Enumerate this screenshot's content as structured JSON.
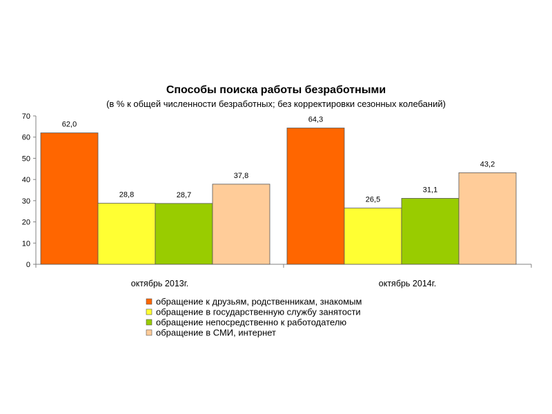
{
  "chart_data": {
    "type": "bar",
    "title": "Способы поиска работы безработными",
    "subtitle": "(в % к общей численности безработных; без корректировки сезонных колебаний)",
    "categories": [
      "октябрь 2013г.",
      "октябрь 2014г."
    ],
    "ylim": [
      0,
      70
    ],
    "yticks": [
      0,
      10,
      20,
      30,
      40,
      50,
      60,
      70
    ],
    "grid": false,
    "legend_position": "bottom",
    "series": [
      {
        "name": "обращение к друзьям, родственникам, знакомым",
        "values": [
          62.0,
          64.3
        ],
        "labels": [
          "62,0",
          "64,3"
        ],
        "color": "#FF6600"
      },
      {
        "name": "обращение в государственную службу занятости",
        "values": [
          28.8,
          26.5
        ],
        "labels": [
          "28,8",
          "26,5"
        ],
        "color": "#FFFF33"
      },
      {
        "name": "обращение непосредственно к работодателю",
        "values": [
          28.7,
          31.1
        ],
        "labels": [
          "28,7",
          "31,1"
        ],
        "color": "#99CC00"
      },
      {
        "name": "обращение в СМИ, интернет",
        "values": [
          37.8,
          43.2
        ],
        "labels": [
          "37,8",
          "43,2"
        ],
        "color": "#FFCC99"
      }
    ]
  }
}
